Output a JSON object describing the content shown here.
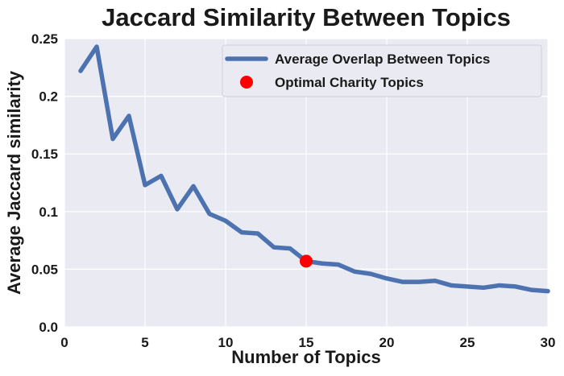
{
  "chart_data": {
    "type": "line",
    "title": "Jaccard Similarity Between Topics",
    "xlabel": "Number of Topics",
    "ylabel": "Average Jaccard similarity",
    "xlim": [
      0,
      30
    ],
    "ylim": [
      0,
      0.25
    ],
    "x_ticks": [
      0,
      5,
      10,
      15,
      20,
      25,
      30
    ],
    "x_tick_labels": [
      "0",
      "5",
      "10",
      "15",
      "20",
      "25",
      "30"
    ],
    "y_ticks": [
      0,
      0.05,
      0.1,
      0.15,
      0.2,
      0.25
    ],
    "y_tick_labels": [
      "0.0",
      "0.05",
      "0.1",
      "0.15",
      "0.2",
      "0.25"
    ],
    "grid": true,
    "legend_position": "top-right",
    "series": [
      {
        "name": "Average Overlap Between Topics",
        "kind": "line",
        "color": "#4c72b0",
        "x": [
          1,
          2,
          3,
          4,
          5,
          6,
          7,
          8,
          9,
          10,
          11,
          12,
          13,
          14,
          15,
          16,
          17,
          18,
          19,
          20,
          21,
          22,
          23,
          24,
          25,
          26,
          27,
          28,
          29,
          30
        ],
        "values": [
          0.222,
          0.243,
          0.163,
          0.183,
          0.123,
          0.131,
          0.102,
          0.122,
          0.098,
          0.092,
          0.082,
          0.081,
          0.069,
          0.068,
          0.057,
          0.055,
          0.054,
          0.048,
          0.046,
          0.042,
          0.039,
          0.039,
          0.04,
          0.036,
          0.035,
          0.034,
          0.036,
          0.035,
          0.032,
          0.031
        ]
      },
      {
        "name": "Optimal Charity Topics",
        "kind": "scatter",
        "color": "#ff0000",
        "x": [
          15
        ],
        "values": [
          0.057
        ]
      }
    ]
  }
}
